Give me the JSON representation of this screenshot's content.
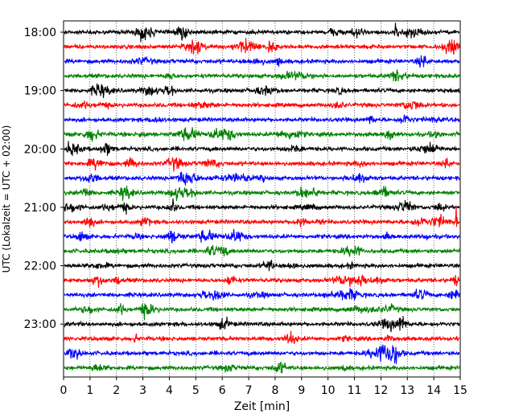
{
  "chart_data": {
    "type": "line",
    "title": "",
    "xlabel": "Zeit  [min]",
    "ylabel": "UTC (Lokalzeit = UTC + 02:00)",
    "xlim": [
      0,
      15
    ],
    "x_ticks": [
      "0",
      "1",
      "2",
      "3",
      "4",
      "5",
      "6",
      "7",
      "8",
      "9",
      "10",
      "11",
      "12",
      "13",
      "14",
      "15"
    ],
    "y_ticks": [
      "18:00",
      "19:00",
      "20:00",
      "21:00",
      "22:00",
      "23:00"
    ],
    "grid": "vertical dotted at each minute",
    "trace_colors": [
      "#000000",
      "#ff0000",
      "#0000ff",
      "#008000"
    ],
    "traces": [
      {
        "start": "18:00"
      },
      {
        "start": "18:15"
      },
      {
        "start": "18:30"
      },
      {
        "start": "18:45"
      },
      {
        "start": "19:00"
      },
      {
        "start": "19:15"
      },
      {
        "start": "19:30"
      },
      {
        "start": "19:45"
      },
      {
        "start": "20:00"
      },
      {
        "start": "20:15"
      },
      {
        "start": "20:30"
      },
      {
        "start": "20:45"
      },
      {
        "start": "21:00"
      },
      {
        "start": "21:15"
      },
      {
        "start": "21:30"
      },
      {
        "start": "21:45"
      },
      {
        "start": "22:00"
      },
      {
        "start": "22:15"
      },
      {
        "start": "22:30"
      },
      {
        "start": "22:45"
      },
      {
        "start": "23:00"
      },
      {
        "start": "23:15"
      },
      {
        "start": "23:30"
      },
      {
        "start": "23:45"
      }
    ]
  }
}
